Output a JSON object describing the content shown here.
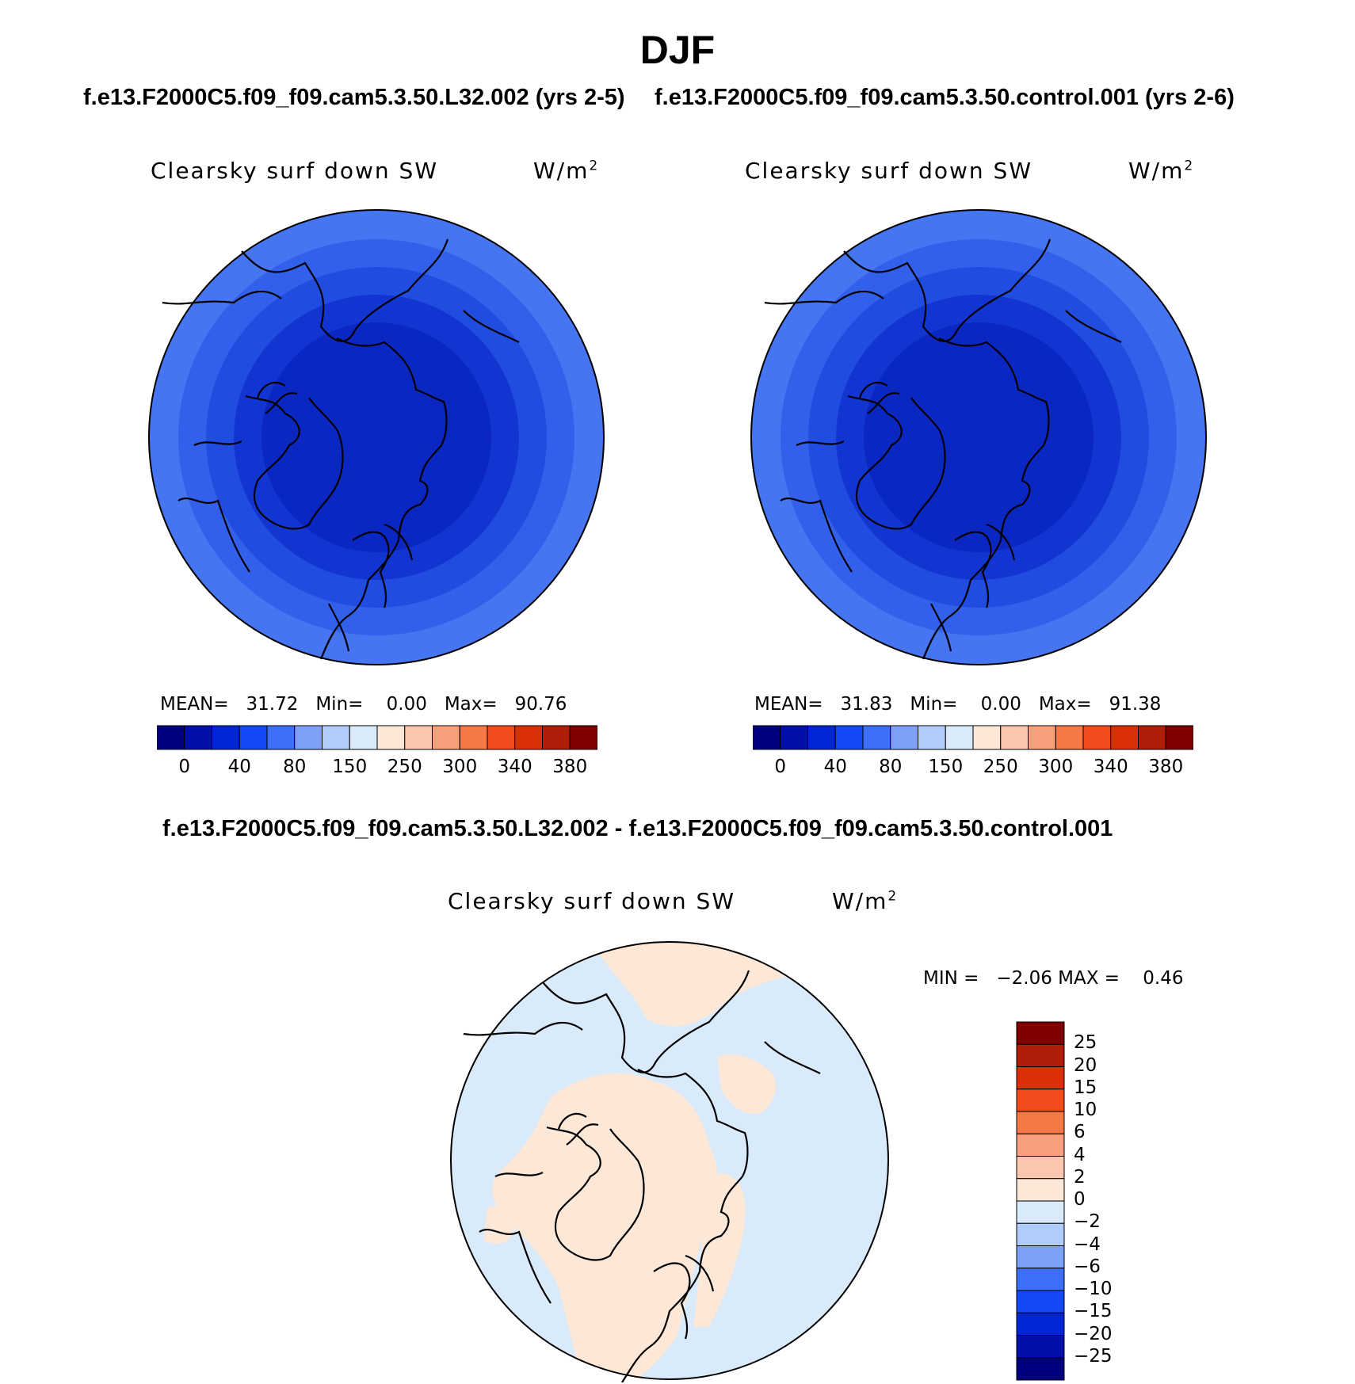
{
  "figure": {
    "title": "DJF"
  },
  "panels": [
    {
      "case_title": "f.e13.F2000C5.f09_f09.cam5.3.50.L32.002 (yrs 2-5)",
      "variable": "Clearsky surf down SW",
      "units": "W/m",
      "units_exp": "2",
      "stats": {
        "mean_label": "MEAN=",
        "mean": "31.72",
        "min_label": "Min=",
        "min": "0.00",
        "max_label": "Max=",
        "max": "90.76"
      }
    },
    {
      "case_title": "f.e13.F2000C5.f09_f09.cam5.3.50.control.001 (yrs 2-6)",
      "variable": "Clearsky surf down SW",
      "units": "W/m",
      "units_exp": "2",
      "stats": {
        "mean_label": "MEAN=",
        "mean": "31.83",
        "min_label": "Min=",
        "min": "0.00",
        "max_label": "Max=",
        "max": "91.38"
      }
    },
    {
      "case_title": "f.e13.F2000C5.f09_f09.cam5.3.50.L32.002 - f.e13.F2000C5.f09_f09.cam5.3.50.control.001",
      "variable": "Clearsky surf down SW",
      "units": "W/m",
      "units_exp": "2",
      "stats": {
        "text": "MIN =   −2.06 MAX =    0.46"
      }
    }
  ],
  "colorbar_main": {
    "colors": [
      "#00007f",
      "#0010a8",
      "#0025d3",
      "#1449f5",
      "#3d6ff8",
      "#7ba2f7",
      "#b0ccfa",
      "#d9eafb",
      "#fde7d6",
      "#fbc8ad",
      "#f89f7e",
      "#f57947",
      "#f24c1d",
      "#da2f07",
      "#b01d0a",
      "#800000"
    ],
    "labels": [
      "0",
      "40",
      "80",
      "150",
      "250",
      "300",
      "340",
      "380"
    ]
  },
  "colorbar_diff": {
    "colors": [
      "#00007f",
      "#0010a8",
      "#0025d3",
      "#1449f5",
      "#3d6ff8",
      "#7ba2f7",
      "#b0ccfa",
      "#d9eafb",
      "#fde7d6",
      "#fbc8ad",
      "#f89f7e",
      "#f57947",
      "#f24c1d",
      "#da2f07",
      "#b01d0a",
      "#800000"
    ],
    "labels": [
      "25",
      "20",
      "15",
      "10",
      "6",
      "4",
      "2",
      "0",
      "−2",
      "−4",
      "−6",
      "−10",
      "−15",
      "−20",
      "−25"
    ]
  },
  "map_fill": {
    "rings": [
      "#4675f1",
      "#3360ea",
      "#214ce0",
      "#1235d2",
      "#0a27c2"
    ],
    "diff_negative": "#d9eafb",
    "diff_positive": "#fde7d6"
  }
}
